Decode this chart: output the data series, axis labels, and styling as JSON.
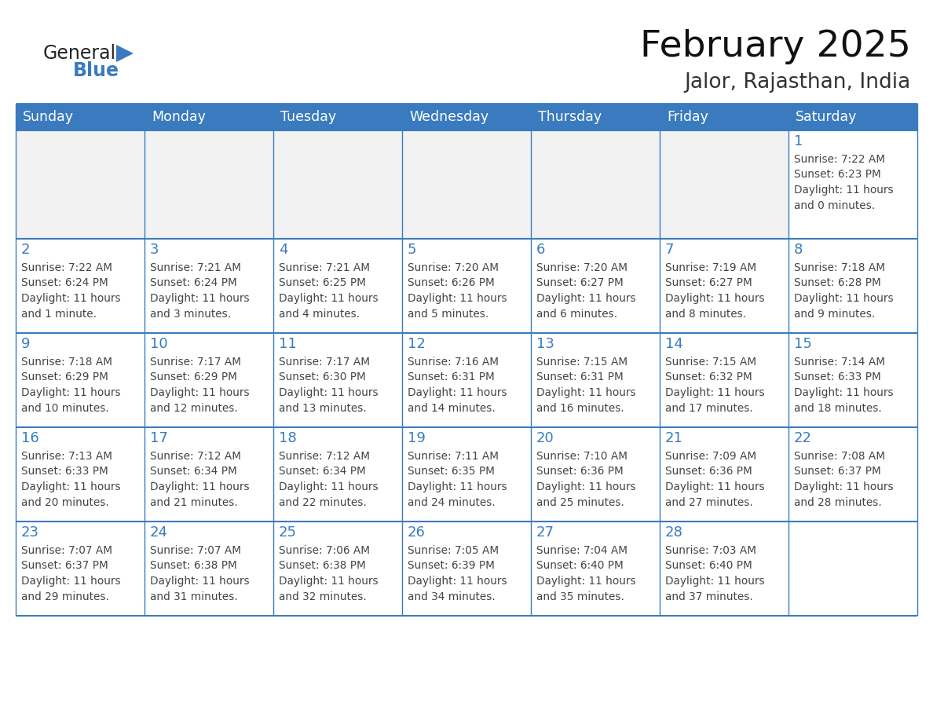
{
  "title": "February 2025",
  "subtitle": "Jalor, Rajasthan, India",
  "header_bg": "#3A7BBF",
  "header_text_color": "#FFFFFF",
  "border_color": "#3A7BBF",
  "text_color": "#444444",
  "day_number_color": "#3A7BBF",
  "days_of_week": [
    "Sunday",
    "Monday",
    "Tuesday",
    "Wednesday",
    "Thursday",
    "Friday",
    "Saturday"
  ],
  "logo_general_color": "#222222",
  "logo_blue_color": "#3A7BBF",
  "calendar_data": [
    [
      {
        "day": null,
        "info": null
      },
      {
        "day": null,
        "info": null
      },
      {
        "day": null,
        "info": null
      },
      {
        "day": null,
        "info": null
      },
      {
        "day": null,
        "info": null
      },
      {
        "day": null,
        "info": null
      },
      {
        "day": 1,
        "info": "Sunrise: 7:22 AM\nSunset: 6:23 PM\nDaylight: 11 hours\nand 0 minutes."
      }
    ],
    [
      {
        "day": 2,
        "info": "Sunrise: 7:22 AM\nSunset: 6:24 PM\nDaylight: 11 hours\nand 1 minute."
      },
      {
        "day": 3,
        "info": "Sunrise: 7:21 AM\nSunset: 6:24 PM\nDaylight: 11 hours\nand 3 minutes."
      },
      {
        "day": 4,
        "info": "Sunrise: 7:21 AM\nSunset: 6:25 PM\nDaylight: 11 hours\nand 4 minutes."
      },
      {
        "day": 5,
        "info": "Sunrise: 7:20 AM\nSunset: 6:26 PM\nDaylight: 11 hours\nand 5 minutes."
      },
      {
        "day": 6,
        "info": "Sunrise: 7:20 AM\nSunset: 6:27 PM\nDaylight: 11 hours\nand 6 minutes."
      },
      {
        "day": 7,
        "info": "Sunrise: 7:19 AM\nSunset: 6:27 PM\nDaylight: 11 hours\nand 8 minutes."
      },
      {
        "day": 8,
        "info": "Sunrise: 7:18 AM\nSunset: 6:28 PM\nDaylight: 11 hours\nand 9 minutes."
      }
    ],
    [
      {
        "day": 9,
        "info": "Sunrise: 7:18 AM\nSunset: 6:29 PM\nDaylight: 11 hours\nand 10 minutes."
      },
      {
        "day": 10,
        "info": "Sunrise: 7:17 AM\nSunset: 6:29 PM\nDaylight: 11 hours\nand 12 minutes."
      },
      {
        "day": 11,
        "info": "Sunrise: 7:17 AM\nSunset: 6:30 PM\nDaylight: 11 hours\nand 13 minutes."
      },
      {
        "day": 12,
        "info": "Sunrise: 7:16 AM\nSunset: 6:31 PM\nDaylight: 11 hours\nand 14 minutes."
      },
      {
        "day": 13,
        "info": "Sunrise: 7:15 AM\nSunset: 6:31 PM\nDaylight: 11 hours\nand 16 minutes."
      },
      {
        "day": 14,
        "info": "Sunrise: 7:15 AM\nSunset: 6:32 PM\nDaylight: 11 hours\nand 17 minutes."
      },
      {
        "day": 15,
        "info": "Sunrise: 7:14 AM\nSunset: 6:33 PM\nDaylight: 11 hours\nand 18 minutes."
      }
    ],
    [
      {
        "day": 16,
        "info": "Sunrise: 7:13 AM\nSunset: 6:33 PM\nDaylight: 11 hours\nand 20 minutes."
      },
      {
        "day": 17,
        "info": "Sunrise: 7:12 AM\nSunset: 6:34 PM\nDaylight: 11 hours\nand 21 minutes."
      },
      {
        "day": 18,
        "info": "Sunrise: 7:12 AM\nSunset: 6:34 PM\nDaylight: 11 hours\nand 22 minutes."
      },
      {
        "day": 19,
        "info": "Sunrise: 7:11 AM\nSunset: 6:35 PM\nDaylight: 11 hours\nand 24 minutes."
      },
      {
        "day": 20,
        "info": "Sunrise: 7:10 AM\nSunset: 6:36 PM\nDaylight: 11 hours\nand 25 minutes."
      },
      {
        "day": 21,
        "info": "Sunrise: 7:09 AM\nSunset: 6:36 PM\nDaylight: 11 hours\nand 27 minutes."
      },
      {
        "day": 22,
        "info": "Sunrise: 7:08 AM\nSunset: 6:37 PM\nDaylight: 11 hours\nand 28 minutes."
      }
    ],
    [
      {
        "day": 23,
        "info": "Sunrise: 7:07 AM\nSunset: 6:37 PM\nDaylight: 11 hours\nand 29 minutes."
      },
      {
        "day": 24,
        "info": "Sunrise: 7:07 AM\nSunset: 6:38 PM\nDaylight: 11 hours\nand 31 minutes."
      },
      {
        "day": 25,
        "info": "Sunrise: 7:06 AM\nSunset: 6:38 PM\nDaylight: 11 hours\nand 32 minutes."
      },
      {
        "day": 26,
        "info": "Sunrise: 7:05 AM\nSunset: 6:39 PM\nDaylight: 11 hours\nand 34 minutes."
      },
      {
        "day": 27,
        "info": "Sunrise: 7:04 AM\nSunset: 6:40 PM\nDaylight: 11 hours\nand 35 minutes."
      },
      {
        "day": 28,
        "info": "Sunrise: 7:03 AM\nSunset: 6:40 PM\nDaylight: 11 hours\nand 37 minutes."
      },
      {
        "day": null,
        "info": null
      }
    ]
  ]
}
